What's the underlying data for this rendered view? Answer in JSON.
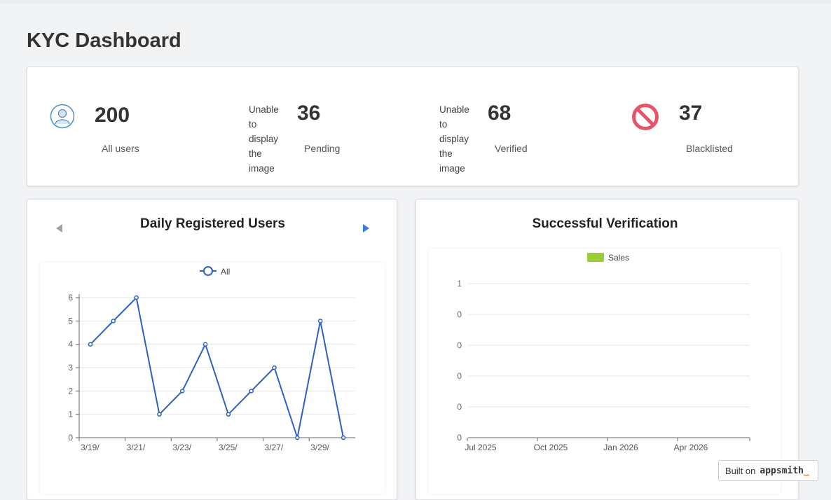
{
  "page": {
    "title": "KYC Dashboard"
  },
  "stats": {
    "all_users": {
      "value": "200",
      "label": "All users",
      "icon": "user-icon"
    },
    "pending": {
      "value": "36",
      "label": "Pending",
      "image_alt": [
        "Unable",
        "to",
        "display",
        "the",
        "image"
      ]
    },
    "verified": {
      "value": "68",
      "label": "Verified",
      "image_alt": [
        "Unable",
        "to",
        "display",
        "the",
        "image"
      ]
    },
    "blacklisted": {
      "value": "37",
      "label": "Blacklisted",
      "icon": "block-icon"
    }
  },
  "colors": {
    "line_series": "#2f5fbf",
    "bar_series": "#9acd32",
    "block_icon": "#e8536a",
    "user_icon": "#4a90c8",
    "arrow_disabled": "#a0a0a0",
    "arrow_active": "#3b7ddd"
  },
  "daily_chart": {
    "title": "Daily Registered Users",
    "prev_icon": "triangle-left-icon",
    "next_icon": "triangle-right-icon"
  },
  "verification_chart": {
    "title": "Successful Verification"
  },
  "badge": {
    "prefix": "Built on",
    "brand": "appsmith",
    "cursor": "_"
  },
  "chart_data": [
    {
      "type": "line",
      "title": "Daily Registered Users",
      "x": [
        "3/19/",
        "3/20/",
        "3/21/",
        "3/22/",
        "3/23/",
        "3/24/",
        "3/25/",
        "3/26/",
        "3/27/",
        "3/28/",
        "3/29/",
        "3/30/"
      ],
      "x_tick_labels": [
        "3/19/",
        "3/21/",
        "3/23/",
        "3/25/",
        "3/27/",
        "3/29/"
      ],
      "series": [
        {
          "name": "All",
          "values": [
            4,
            5,
            6,
            1,
            2,
            4,
            1,
            2,
            3,
            0,
            5,
            0
          ]
        }
      ],
      "ylim": [
        0,
        6
      ],
      "y_ticks": [
        "0",
        "1",
        "2",
        "3",
        "4",
        "5",
        "6"
      ],
      "grid": true,
      "legend": "top-center"
    },
    {
      "type": "bar",
      "title": "Successful Verification",
      "x_tick_labels": [
        "Jul 2025",
        "Oct 2025",
        "Jan 2026",
        "Apr 2026"
      ],
      "series": [
        {
          "name": "Sales",
          "values": []
        }
      ],
      "y_ticks": [
        "0",
        "0",
        "0",
        "0",
        "0",
        "1"
      ],
      "grid": true,
      "legend": "top-center"
    }
  ]
}
